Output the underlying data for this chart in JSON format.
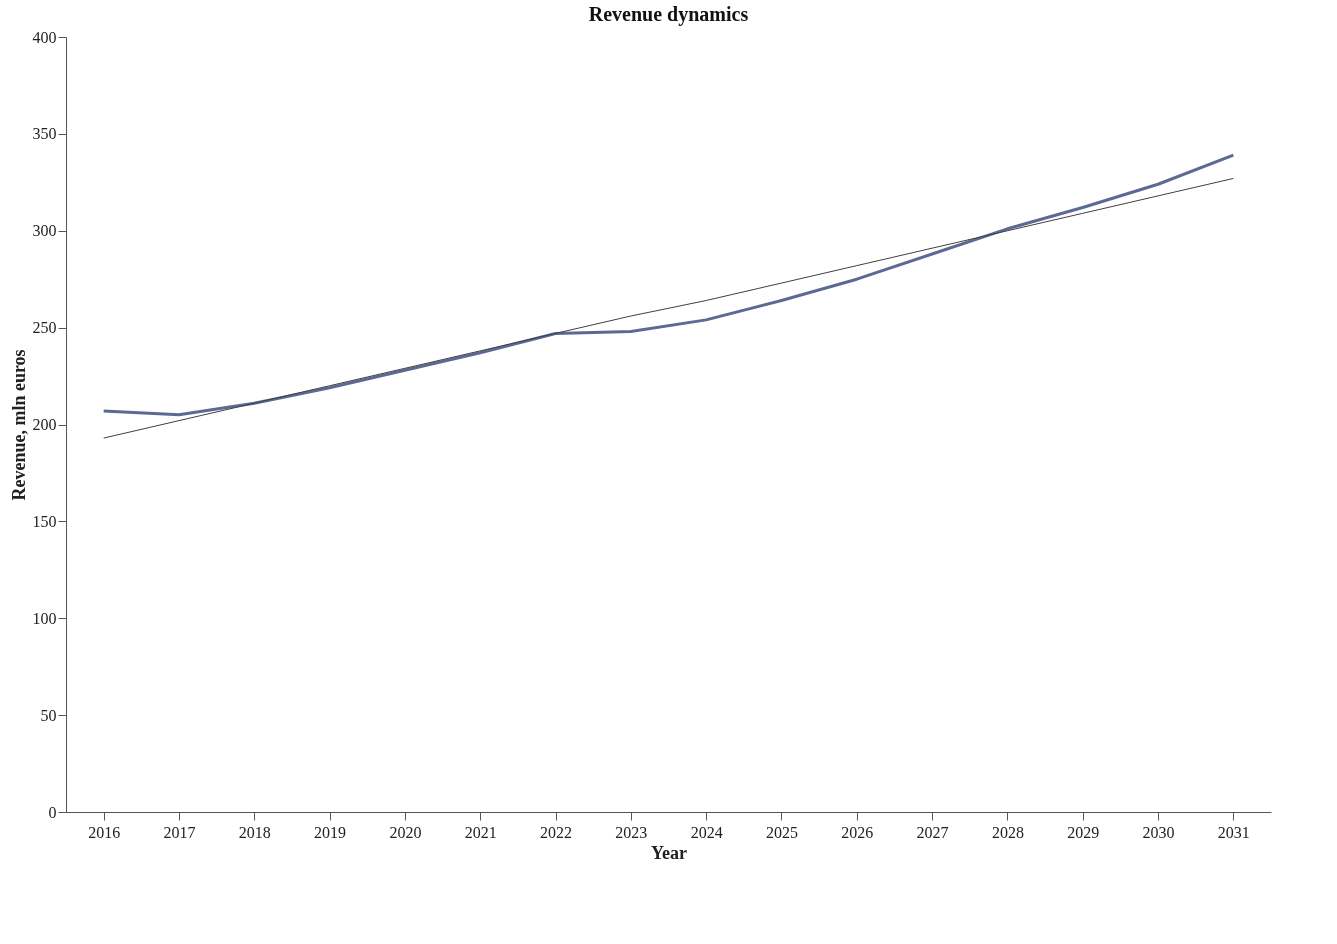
{
  "chart_data": {
    "type": "line",
    "title": "Revenue dynamics",
    "xlabel": "Year",
    "ylabel": "Revenue, mln euros",
    "categories": [
      "2016",
      "2017",
      "2018",
      "2019",
      "2020",
      "2021",
      "2022",
      "2023",
      "2024",
      "2025",
      "2026",
      "2027",
      "2028",
      "2029",
      "2030",
      "2031"
    ],
    "series": [
      {
        "color": "#5a6a94",
        "values": [
          207,
          205,
          211,
          219,
          228,
          237,
          247,
          248,
          254,
          264,
          275,
          288,
          301,
          312,
          324,
          339
        ]
      },
      {
        "type": "line",
        "color": "#404040",
        "values": [
          193,
          202,
          211,
          220,
          229,
          238,
          247,
          256,
          264,
          273,
          282,
          291,
          300,
          309,
          318,
          327
        ]
      }
    ],
    "ylim": [
      0,
      400
    ],
    "yticks": [
      0,
      50,
      100,
      150,
      200,
      250,
      300,
      350,
      400
    ],
    "line_style": "solid"
  }
}
